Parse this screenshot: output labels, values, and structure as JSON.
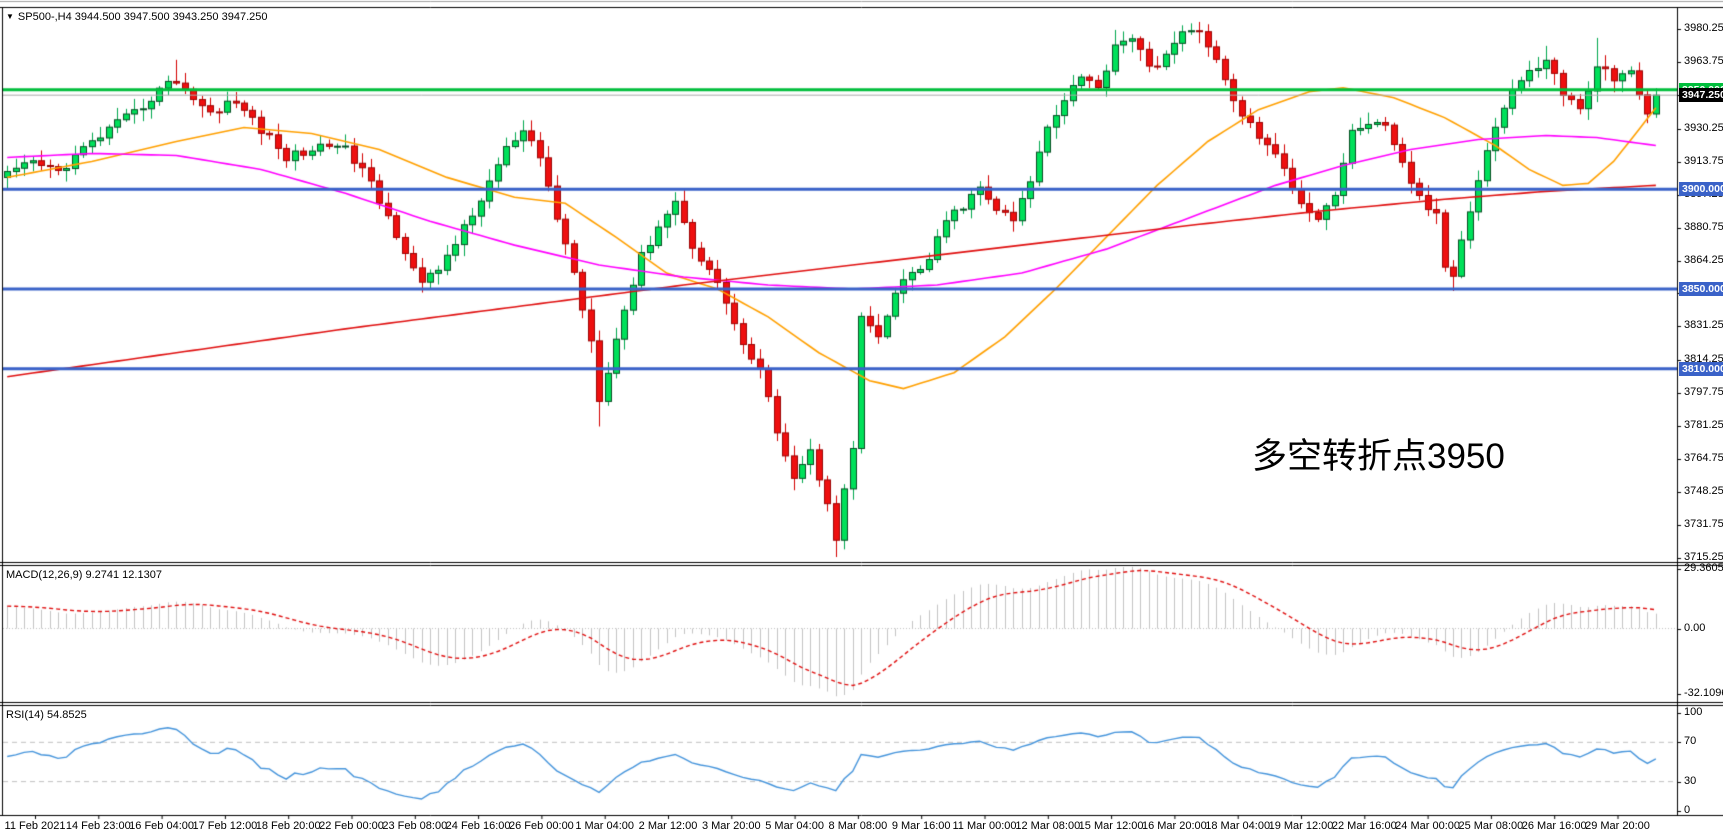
{
  "header": {
    "collapse_icon": "▼",
    "text": "SP500-,H4  3944.500 3947.500 3943.250 3947.250"
  },
  "colors": {
    "candle_up_fill": "#00E05A",
    "candle_up_wick": "#00A84E",
    "candle_outline": "#064d22",
    "candle_down_fill": "#EE0F0F",
    "candle_down_wick": "#D40000",
    "candle_down_outline": "#9c0404",
    "level_blue": "#3A62C8",
    "level_green": "#00BE3C",
    "bid_gray": "#A9A9A9",
    "ma_fast": "#FFA000",
    "ma_medium": "#FF00FF",
    "ma_slow": "#E01010",
    "macd_bar": "#C4C4C4",
    "macd_signal": "#E01010",
    "rsi_line": "#4695DC",
    "grid_dash": "#C0C0C0",
    "frame": "#000000",
    "annotation_red": "#F21B1B",
    "tag_current_bg": "#000000"
  },
  "time_axis": {
    "labels": [
      "11 Feb 2021",
      "14 Feb 23:00",
      "16 Feb 04:00",
      "17 Feb 12:00",
      "18 Feb 20:00",
      "22 Feb 00:00",
      "23 Feb 08:00",
      "24 Feb 16:00",
      "26 Feb 00:00",
      "1 Mar 04:00",
      "2 Mar 12:00",
      "3 Mar 20:00",
      "5 Mar 04:00",
      "8 Mar 08:00",
      "9 Mar 16:00",
      "11 Mar 00:00",
      "12 Mar 08:00",
      "15 Mar 12:00",
      "16 Mar 20:00",
      "18 Mar 04:00",
      "19 Mar 12:00",
      "22 Mar 16:00",
      "24 Mar 00:00",
      "25 Mar 08:00",
      "26 Mar 16:00",
      "29 Mar 20:00"
    ]
  },
  "chart_data": [
    {
      "type": "candlestick",
      "title": "SP500-,H4",
      "symbol": "SP500-",
      "timeframe": "H4",
      "ohlc_display": {
        "open": "3944.500",
        "high": "3947.500",
        "low": "3943.250",
        "close": "3947.250"
      },
      "current_price": 3947.25,
      "price_range": {
        "top": 3991,
        "bottom": 3713
      },
      "candle_count": 196,
      "y_axis_ticks": [
        {
          "v": 3980.25,
          "label": "3980.250"
        },
        {
          "v": 3963.75,
          "label": "3963.750"
        },
        {
          "v": 3947.25,
          "label": "3947.250"
        },
        {
          "v": 3930.25,
          "label": "3930.250"
        },
        {
          "v": 3913.75,
          "label": "3913.750"
        },
        {
          "v": 3897.25,
          "label": "3897.250"
        },
        {
          "v": 3880.75,
          "label": "3880.750"
        },
        {
          "v": 3864.25,
          "label": "3864.250"
        },
        {
          "v": 3847.75,
          "label": "3847.750"
        },
        {
          "v": 3831.25,
          "label": "3831.250"
        },
        {
          "v": 3814.25,
          "label": "3814.250"
        },
        {
          "v": 3797.75,
          "label": "3797.750"
        },
        {
          "v": 3781.25,
          "label": "3781.250"
        },
        {
          "v": 3764.75,
          "label": "3764.750"
        },
        {
          "v": 3748.25,
          "label": "3748.250"
        },
        {
          "v": 3731.75,
          "label": "3731.750"
        },
        {
          "v": 3715.25,
          "label": "3715.250"
        }
      ],
      "horizontal_lines": [
        {
          "price": 3950.0,
          "label": "3950.000",
          "color": "#00BE3C",
          "width": 3,
          "tag_bg": "#00BE3C"
        },
        {
          "price": 3947.25,
          "label": "3947.250",
          "color": "#A9A9A9",
          "width": 1,
          "tag_bg": "#000000"
        },
        {
          "price": 3900.0,
          "label": "3900.000",
          "color": "#3A62C8",
          "width": 3,
          "tag_bg": "#3A62C8"
        },
        {
          "price": 3850.0,
          "label": "3850.000",
          "color": "#3A62C8",
          "width": 3,
          "tag_bg": "#3A62C8"
        },
        {
          "price": 3810.0,
          "label": "3810.000",
          "color": "#3A62C8",
          "width": 3,
          "tag_bg": "#3A62C8"
        }
      ],
      "close_anchors": [
        [
          0,
          3907
        ],
        [
          3,
          3913
        ],
        [
          6,
          3909
        ],
        [
          9,
          3920
        ],
        [
          12,
          3930
        ],
        [
          15,
          3938
        ],
        [
          18,
          3950
        ],
        [
          20,
          3955
        ],
        [
          22,
          3946
        ],
        [
          24,
          3938
        ],
        [
          26,
          3944
        ],
        [
          28,
          3940
        ],
        [
          30,
          3930
        ],
        [
          33,
          3916
        ],
        [
          36,
          3920
        ],
        [
          39,
          3924
        ],
        [
          42,
          3910
        ],
        [
          45,
          3886
        ],
        [
          47,
          3870
        ],
        [
          49,
          3852
        ],
        [
          51,
          3860
        ],
        [
          53,
          3874
        ],
        [
          55,
          3886
        ],
        [
          57,
          3904
        ],
        [
          59,
          3920
        ],
        [
          61,
          3928
        ],
        [
          63,
          3916
        ],
        [
          65,
          3886
        ],
        [
          67,
          3858
        ],
        [
          69,
          3824
        ],
        [
          70,
          3796
        ],
        [
          71,
          3810
        ],
        [
          73,
          3840
        ],
        [
          75,
          3866
        ],
        [
          77,
          3882
        ],
        [
          79,
          3894
        ],
        [
          81,
          3872
        ],
        [
          83,
          3860
        ],
        [
          85,
          3844
        ],
        [
          87,
          3822
        ],
        [
          89,
          3808
        ],
        [
          91,
          3780
        ],
        [
          93,
          3756
        ],
        [
          95,
          3768
        ],
        [
          97,
          3744
        ],
        [
          98,
          3726
        ],
        [
          100,
          3770
        ],
        [
          101,
          3836
        ],
        [
          103,
          3824
        ],
        [
          105,
          3848
        ],
        [
          107,
          3858
        ],
        [
          109,
          3864
        ],
        [
          111,
          3884
        ],
        [
          113,
          3892
        ],
        [
          115,
          3900
        ],
        [
          117,
          3890
        ],
        [
          119,
          3884
        ],
        [
          121,
          3904
        ],
        [
          123,
          3932
        ],
        [
          125,
          3946
        ],
        [
          127,
          3958
        ],
        [
          129,
          3950
        ],
        [
          131,
          3973
        ],
        [
          133,
          3977
        ],
        [
          135,
          3960
        ],
        [
          137,
          3968
        ],
        [
          139,
          3977
        ],
        [
          141,
          3981
        ],
        [
          143,
          3964
        ],
        [
          145,
          3944
        ],
        [
          147,
          3932
        ],
        [
          149,
          3922
        ],
        [
          151,
          3910
        ],
        [
          153,
          3894
        ],
        [
          155,
          3886
        ],
        [
          157,
          3898
        ],
        [
          159,
          3928
        ],
        [
          161,
          3934
        ],
        [
          163,
          3930
        ],
        [
          165,
          3912
        ],
        [
          167,
          3896
        ],
        [
          169,
          3886
        ],
        [
          170,
          3862
        ],
        [
          171,
          3856
        ],
        [
          172,
          3876
        ],
        [
          174,
          3906
        ],
        [
          176,
          3932
        ],
        [
          178,
          3950
        ],
        [
          180,
          3958
        ],
        [
          182,
          3966
        ],
        [
          184,
          3948
        ],
        [
          186,
          3940
        ],
        [
          188,
          3962
        ],
        [
          190,
          3956
        ],
        [
          192,
          3958
        ],
        [
          193,
          3946
        ],
        [
          194,
          3940
        ],
        [
          195,
          3947.25
        ]
      ],
      "wick_events": [
        {
          "i": 20,
          "high": 3965
        },
        {
          "i": 70,
          "low": 3781
        },
        {
          "i": 93,
          "low": 3749
        },
        {
          "i": 98,
          "low": 3715.5
        },
        {
          "i": 131,
          "high": 3980
        },
        {
          "i": 141,
          "high": 3984
        },
        {
          "i": 171,
          "low": 3849
        },
        {
          "i": 182,
          "high": 3972
        },
        {
          "i": 188,
          "high": 3976
        }
      ],
      "moving_averages": [
        {
          "name": "ma-fast-orange",
          "color": "#FFA000",
          "anchors": [
            [
              0,
              3906
            ],
            [
              10,
              3914
            ],
            [
              20,
              3924
            ],
            [
              28,
              3931
            ],
            [
              36,
              3928
            ],
            [
              44,
              3920
            ],
            [
              52,
              3906
            ],
            [
              60,
              3896
            ],
            [
              66,
              3893
            ],
            [
              72,
              3876
            ],
            [
              78,
              3858
            ],
            [
              84,
              3850
            ],
            [
              90,
              3836
            ],
            [
              96,
              3818
            ],
            [
              102,
              3804
            ],
            [
              106,
              3800
            ],
            [
              112,
              3808
            ],
            [
              118,
              3826
            ],
            [
              124,
              3850
            ],
            [
              130,
              3876
            ],
            [
              136,
              3902
            ],
            [
              142,
              3924
            ],
            [
              148,
              3940
            ],
            [
              154,
              3949
            ],
            [
              158,
              3951
            ],
            [
              164,
              3946
            ],
            [
              170,
              3936
            ],
            [
              176,
              3922
            ],
            [
              180,
              3910
            ],
            [
              184,
              3902
            ],
            [
              187,
              3903
            ],
            [
              190,
              3914
            ],
            [
              193,
              3930
            ],
            [
              195,
              3941
            ]
          ]
        },
        {
          "name": "ma-medium-magenta",
          "color": "#FF00FF",
          "anchors": [
            [
              0,
              3916
            ],
            [
              10,
              3918
            ],
            [
              20,
              3917
            ],
            [
              30,
              3910
            ],
            [
              40,
              3898
            ],
            [
              50,
              3884
            ],
            [
              60,
              3872
            ],
            [
              70,
              3862
            ],
            [
              80,
              3856
            ],
            [
              90,
              3852
            ],
            [
              100,
              3850
            ],
            [
              110,
              3852
            ],
            [
              120,
              3858
            ],
            [
              130,
              3870
            ],
            [
              140,
              3886
            ],
            [
              150,
              3902
            ],
            [
              158,
              3912
            ],
            [
              166,
              3920
            ],
            [
              174,
              3925
            ],
            [
              182,
              3927
            ],
            [
              188,
              3926
            ],
            [
              195,
              3922
            ]
          ]
        },
        {
          "name": "ma-slow-red",
          "color": "#E01010",
          "anchors": [
            [
              0,
              3806
            ],
            [
              20,
              3818
            ],
            [
              40,
              3830
            ],
            [
              60,
              3841
            ],
            [
              80,
              3852
            ],
            [
              100,
              3862
            ],
            [
              120,
              3872
            ],
            [
              140,
              3882
            ],
            [
              155,
              3889
            ],
            [
              170,
              3895
            ],
            [
              182,
              3899
            ],
            [
              195,
              3902
            ]
          ]
        }
      ],
      "annotation": {
        "text": "多空转折点3950",
        "color": "#F21B1B"
      }
    },
    {
      "type": "macd_histogram",
      "label": "MACD(12,26,9) 9.2741 12.1307",
      "params": [
        12,
        26,
        9
      ],
      "values_display": [
        "9.2741",
        "12.1307"
      ],
      "y_ticks": [
        {
          "v": 29.3605,
          "label": "29.3605"
        },
        {
          "v": 0,
          "label": "0.00"
        },
        {
          "v": -32.1096,
          "label": "-32.1096"
        }
      ],
      "range": {
        "top": 30.8,
        "bottom": -35.7
      }
    },
    {
      "type": "rsi_line",
      "label": "RSI(14) 54.8525",
      "period": 14,
      "value_display": "54.8525",
      "y_ticks": [
        {
          "v": 100,
          "label": "100"
        },
        {
          "v": 70,
          "label": "70"
        },
        {
          "v": 30,
          "label": "30"
        },
        {
          "v": 0,
          "label": "0"
        }
      ],
      "levels": [
        70,
        30
      ],
      "range": {
        "top": 107,
        "bottom": -3
      }
    }
  ]
}
